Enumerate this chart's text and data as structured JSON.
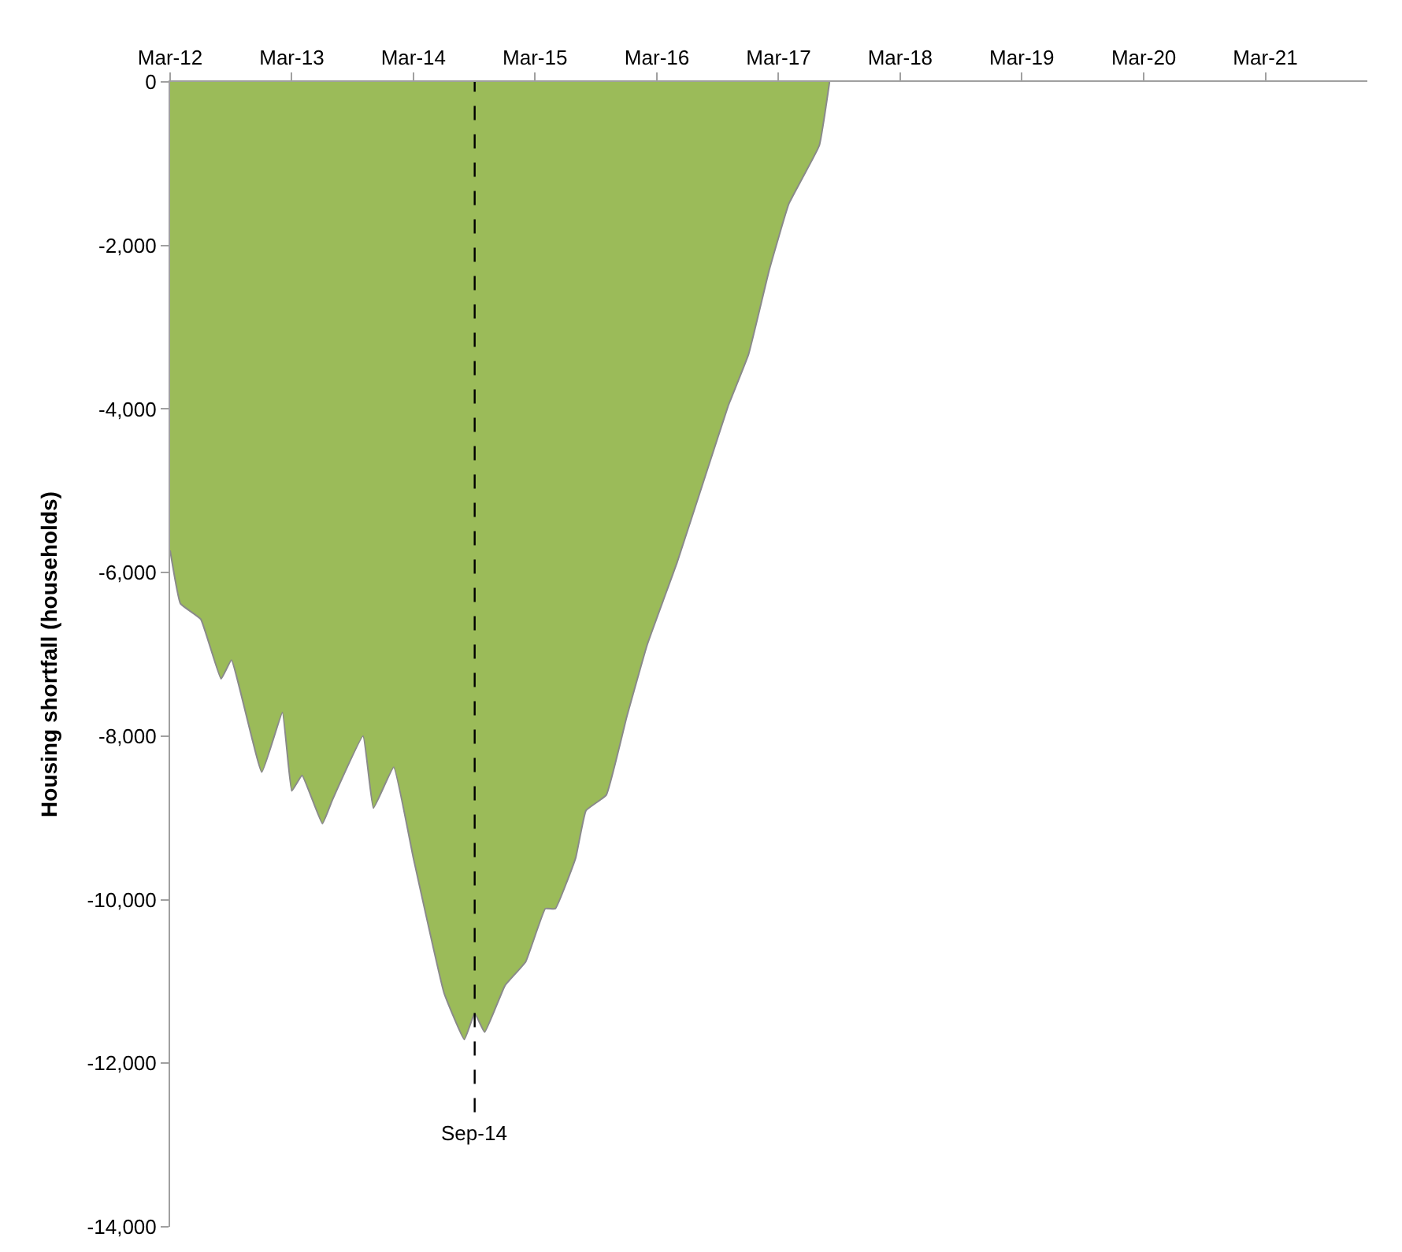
{
  "chart_data": {
    "type": "area",
    "ylabel": "Housing shortfall (households)",
    "x": [
      "2012-03",
      "2012-04",
      "2012-06",
      "2012-08",
      "2012-09",
      "2012-12",
      "2013-02",
      "2013-03",
      "2013-04",
      "2013-06",
      "2013-07",
      "2013-10",
      "2013-11",
      "2014-01",
      "2014-03",
      "2014-06",
      "2014-08",
      "2014-09",
      "2014-10",
      "2014-12",
      "2015-02",
      "2015-04",
      "2015-05",
      "2015-07",
      "2015-08",
      "2015-10",
      "2015-12",
      "2016-02",
      "2016-05",
      "2016-08",
      "2016-10",
      "2016-12",
      "2017-02",
      "2017-04",
      "2017-07",
      "2017-08"
    ],
    "series": [
      {
        "color": "#9bbb59",
        "values": [
          -5730,
          -6380,
          -6570,
          -7300,
          -7070,
          -8440,
          -7710,
          -8670,
          -8480,
          -9070,
          -8780,
          -8000,
          -8880,
          -8380,
          -9490,
          -11140,
          -11710,
          -11390,
          -11620,
          -11050,
          -10760,
          -10110,
          -10110,
          -9490,
          -8910,
          -8720,
          -7770,
          -6880,
          -5870,
          -4720,
          -3960,
          -3330,
          -2300,
          -1490,
          -780,
          0
        ]
      }
    ],
    "xlim": [
      "2012-03",
      "2022-01"
    ],
    "xticks": [
      {
        "value": "2012-03",
        "label": "Mar-12"
      },
      {
        "value": "2013-03",
        "label": "Mar-13"
      },
      {
        "value": "2014-03",
        "label": "Mar-14"
      },
      {
        "value": "2015-03",
        "label": "Mar-15"
      },
      {
        "value": "2016-03",
        "label": "Mar-16"
      },
      {
        "value": "2017-03",
        "label": "Mar-17"
      },
      {
        "value": "2018-03",
        "label": "Mar-18"
      },
      {
        "value": "2019-03",
        "label": "Mar-19"
      },
      {
        "value": "2020-03",
        "label": "Mar-20"
      },
      {
        "value": "2021-03",
        "label": "Mar-21"
      }
    ],
    "ylim": [
      -14000,
      0
    ],
    "yticks": [
      0,
      {
        "value": -2000,
        "label": "-2,000"
      },
      {
        "value": -4000,
        "label": "-4,000"
      },
      {
        "value": -6000,
        "label": "-6,000"
      },
      {
        "value": -8000,
        "label": "-8,000"
      },
      {
        "value": -10000,
        "label": "-10,000"
      },
      {
        "value": -12000,
        "label": "-12,000"
      },
      {
        "value": -14000,
        "label": "-14,000"
      }
    ],
    "ref_lines": [
      {
        "axis": "x",
        "value": "2014-09",
        "label": "Sep-14",
        "color": "#000000",
        "line_style": "dashed"
      }
    ]
  }
}
